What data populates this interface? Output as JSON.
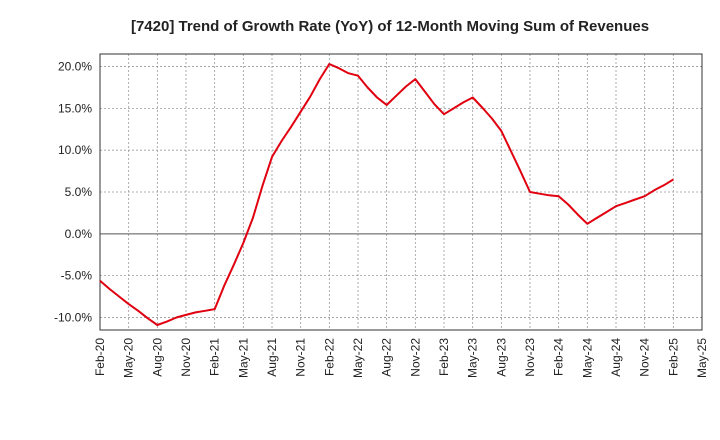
{
  "chart_data": {
    "type": "line",
    "title": "[7420]  Trend of Growth Rate (YoY) of 12-Month Moving Sum of Revenues",
    "xlabel": "",
    "ylabel": "",
    "ylim": [
      -11.5,
      21.5
    ],
    "yticks": [
      -10,
      -5,
      0,
      5,
      10,
      15,
      20
    ],
    "ytick_labels": [
      "-10.0%",
      "-5.0%",
      "0.0%",
      "5.0%",
      "10.0%",
      "15.0%",
      "20.0%"
    ],
    "categories": [
      "Feb-20",
      "May-20",
      "Aug-20",
      "Nov-20",
      "Feb-21",
      "May-21",
      "Aug-21",
      "Nov-21",
      "Feb-22",
      "May-22",
      "Aug-22",
      "Nov-22",
      "Feb-23",
      "May-23",
      "Aug-23",
      "Nov-23",
      "Feb-24",
      "May-24",
      "Aug-24",
      "Nov-24",
      "Feb-25",
      "May-25"
    ],
    "series": [
      {
        "color": "#e0000f",
        "x": [
          "Feb-20",
          "Mar-20",
          "Apr-20",
          "May-20",
          "Jun-20",
          "Jul-20",
          "Aug-20",
          "Sep-20",
          "Oct-20",
          "Nov-20",
          "Dec-20",
          "Jan-21",
          "Feb-21",
          "Mar-21",
          "Apr-21",
          "May-21",
          "Jun-21",
          "Jul-21",
          "Aug-21",
          "Sep-21",
          "Oct-21",
          "Nov-21",
          "Dec-21",
          "Jan-22",
          "Feb-22",
          "Mar-22",
          "Apr-22",
          "May-22",
          "Jun-22",
          "Jul-22",
          "Aug-22",
          "Sep-22",
          "Oct-22",
          "Nov-22",
          "Dec-22",
          "Jan-23",
          "Feb-23",
          "Mar-23",
          "Apr-23",
          "May-23",
          "Jun-23",
          "Jul-23",
          "Aug-23",
          "Sep-23",
          "Oct-23",
          "Nov-23",
          "Dec-23",
          "Jan-24",
          "Feb-24",
          "Mar-24",
          "Apr-24",
          "May-24",
          "Jun-24",
          "Jul-24",
          "Aug-24",
          "Sep-24",
          "Oct-24",
          "Nov-24",
          "Dec-24",
          "Jan-25",
          "Feb-25"
        ],
        "values": [
          -5.6,
          -6.6,
          -7.5,
          -8.4,
          -9.2,
          -10.1,
          -10.9,
          -10.5,
          -10.0,
          -9.7,
          -9.4,
          -9.2,
          -9.0,
          -6.2,
          -3.7,
          -1.1,
          1.9,
          5.7,
          9.2,
          11.1,
          12.8,
          14.6,
          16.4,
          18.5,
          20.3,
          19.8,
          19.2,
          18.9,
          17.5,
          16.3,
          15.4,
          16.5,
          17.6,
          18.5,
          17.0,
          15.5,
          14.3,
          15.0,
          15.7,
          16.3,
          15.1,
          13.8,
          12.3,
          9.9,
          7.5,
          5.0,
          4.8,
          4.6,
          4.5,
          3.5,
          2.3,
          1.2,
          1.9,
          2.6,
          3.3,
          3.7,
          4.1,
          4.5,
          5.2,
          5.8,
          6.5
        ]
      }
    ],
    "grid": true,
    "legend": "none"
  }
}
